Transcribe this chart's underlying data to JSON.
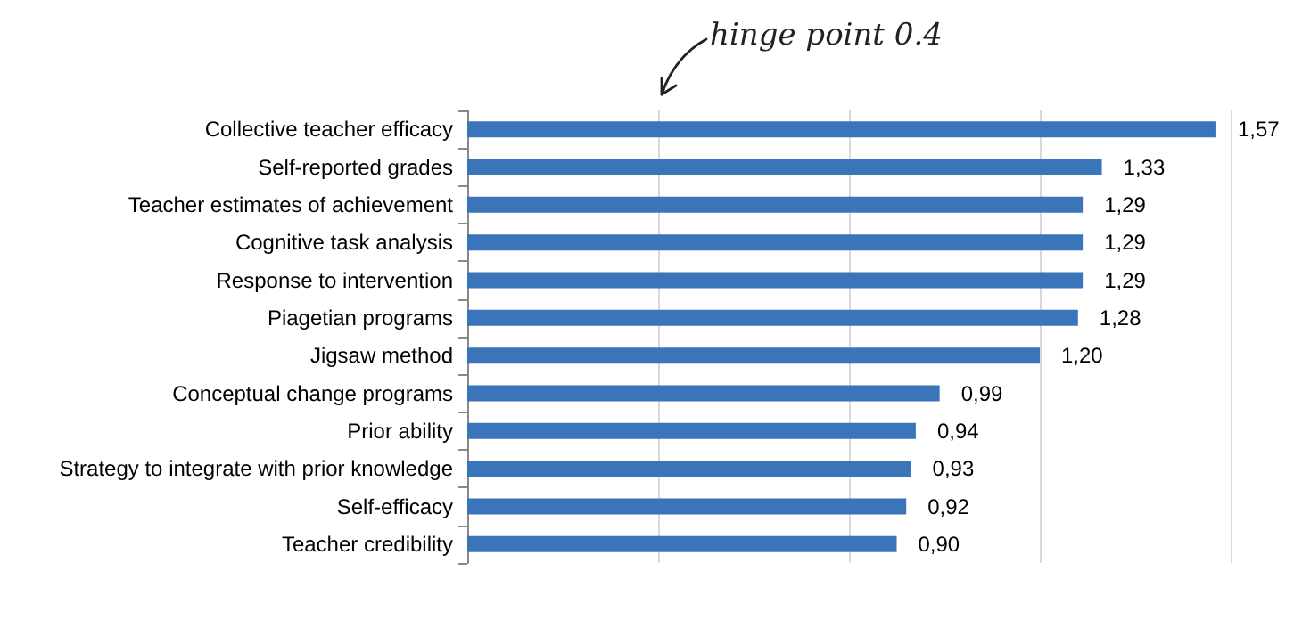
{
  "chart_data": {
    "type": "bar",
    "orientation": "horizontal",
    "categories": [
      "Collective teacher efficacy",
      "Self-reported grades",
      "Teacher estimates of achievement",
      "Cognitive task analysis",
      "Response to intervention",
      "Piagetian programs",
      "Jigsaw method",
      "Conceptual change programs",
      "Prior ability",
      "Strategy to integrate with prior knowledge",
      "Self-efficacy",
      "Teacher credibility"
    ],
    "values": [
      1.57,
      1.33,
      1.29,
      1.29,
      1.29,
      1.28,
      1.2,
      0.99,
      0.94,
      0.93,
      0.92,
      0.9
    ],
    "value_labels": [
      "1,57",
      "1,33",
      "1,29",
      "1,29",
      "1,29",
      "1,28",
      "1,20",
      "0,99",
      "0,94",
      "0,93",
      "0,92",
      "0,90"
    ],
    "color": "#3b75b9",
    "xlim": [
      0,
      1.6
    ],
    "xticks": [
      {
        "value": 0,
        "label": null
      },
      {
        "value": 0.4,
        "label": null
      },
      {
        "value": 0.8,
        "label": null
      },
      {
        "value": 1.2,
        "label": null
      },
      {
        "value": 1.6,
        "label": null
      }
    ],
    "grid": "x",
    "tick_labels": "y",
    "annotations": [
      "hinge point 0.4"
    ]
  }
}
